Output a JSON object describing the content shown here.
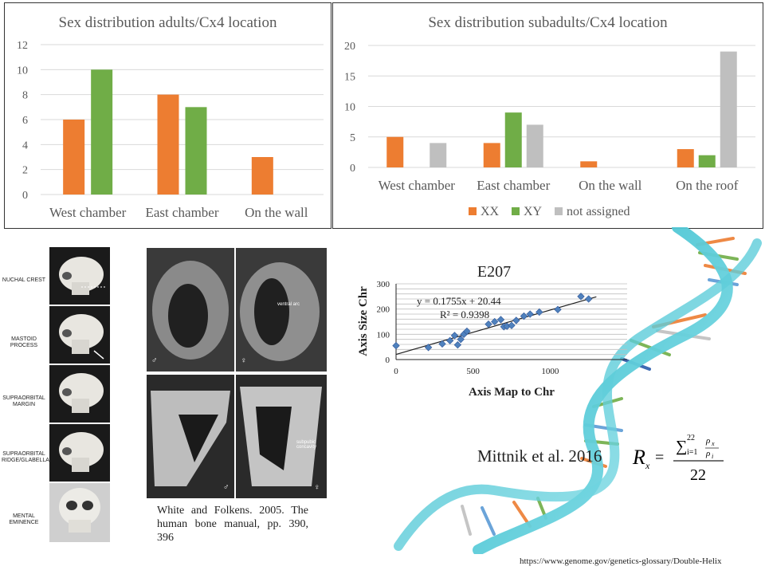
{
  "chart_data": [
    {
      "type": "bar",
      "title": "Sex distribution adults/Cx4 location",
      "categories": [
        "West chamber",
        "East chamber",
        "On the wall"
      ],
      "series": [
        {
          "values": [
            6,
            8,
            3
          ]
        },
        {
          "values": [
            10,
            7,
            0
          ]
        }
      ],
      "ylim": [
        0,
        12
      ],
      "yticks": [
        "0",
        "2",
        "4",
        "6",
        "8",
        "10",
        "12"
      ],
      "grid": true,
      "colors": [
        "#ED7D31",
        "#70AD47"
      ]
    },
    {
      "type": "bar",
      "title": "Sex distribution subadults/Cx4 location",
      "categories": [
        "West chamber",
        "East chamber",
        "On the wall",
        "On the roof"
      ],
      "series": [
        {
          "name": "XX",
          "values": [
            5,
            4,
            1,
            3
          ]
        },
        {
          "name": "XY",
          "values": [
            0,
            9,
            0,
            2
          ]
        },
        {
          "name": "not assigned",
          "values": [
            4,
            7,
            0,
            19
          ]
        }
      ],
      "ylim": [
        0,
        20
      ],
      "yticks": [
        "0",
        "5",
        "10",
        "15",
        "20"
      ],
      "grid": true,
      "legend": "bottom",
      "colors": [
        "#ED7D31",
        "#70AD47",
        "#BFBFBF"
      ]
    },
    {
      "type": "scatter",
      "title": "E207",
      "xlabel": "Axis Map to Chr",
      "ylabel": "Axis Size Chr",
      "xlim": [
        0,
        1500
      ],
      "ylim": [
        0,
        300
      ],
      "xticks": [
        "0",
        "500",
        "1000"
      ],
      "yticks": [
        "0",
        "100",
        "200",
        "300"
      ],
      "equation": "y = 0.1755x + 20.44",
      "r2": "R² = 0.9398",
      "trendline": {
        "slope": 0.1755,
        "intercept": 20.44
      },
      "points": [
        [
          0,
          55
        ],
        [
          210,
          48
        ],
        [
          300,
          62
        ],
        [
          350,
          75
        ],
        [
          380,
          95
        ],
        [
          400,
          58
        ],
        [
          420,
          80
        ],
        [
          440,
          100
        ],
        [
          460,
          112
        ],
        [
          600,
          140
        ],
        [
          640,
          150
        ],
        [
          680,
          158
        ],
        [
          700,
          130
        ],
        [
          720,
          132
        ],
        [
          750,
          135
        ],
        [
          780,
          155
        ],
        [
          830,
          172
        ],
        [
          870,
          180
        ],
        [
          930,
          188
        ],
        [
          1050,
          198
        ],
        [
          1200,
          250
        ],
        [
          1250,
          240
        ]
      ],
      "color": "#4F81BD"
    }
  ],
  "captions": {
    "bones": "White and Folkens. 2005. The human bone manual, pp. 390, 396",
    "citation": "Mittnik et al. 2016",
    "url": "https://www.genome.gov/genetics-glossary/Double-Helix"
  },
  "skull_labels": [
    "NUCHAL CREST",
    "MASTOID PROCESS",
    "SUPRAORBITAL MARGIN",
    "SUPRAORBITAL RIDGE/GLABELLA",
    "MENTAL EMINENCE"
  ],
  "pelvis_labels": {
    "ventral_arc": "ventral arc",
    "subpubic": "subpubic concavity",
    "male": "♂",
    "female": "♀"
  },
  "formula": {
    "lhs": "R",
    "lhs_sub": "x",
    "sum_top": "22",
    "sum_bottom": "i=1",
    "num": "ρ",
    "num_sub": "x",
    "den": "ρ",
    "den_sub": "i",
    "divisor": "22"
  }
}
